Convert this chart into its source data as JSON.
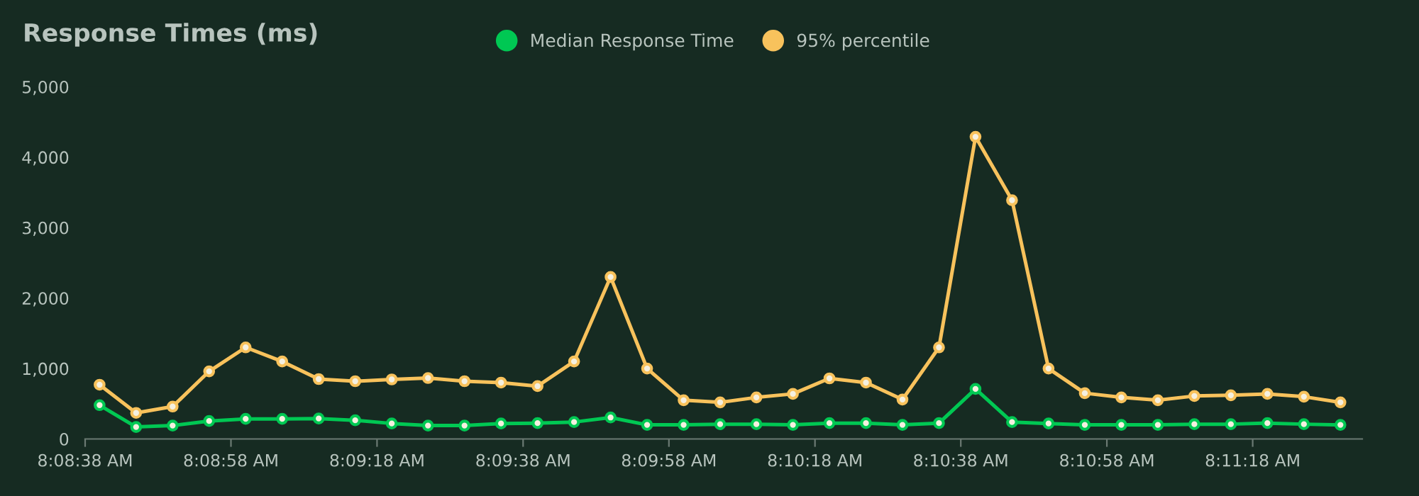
{
  "chart_data": {
    "type": "line",
    "title": "Response Times (ms)",
    "x": [
      8.14444,
      8.14583,
      8.14722,
      8.14861,
      8.15,
      8.15139,
      8.15278,
      8.15417,
      8.15556,
      8.15694,
      8.15833,
      8.15972,
      8.16111,
      8.1625,
      8.16389,
      8.16528,
      8.16667,
      8.16806,
      8.16944,
      8.17083,
      8.17222,
      8.17361,
      8.175,
      8.17639,
      8.17778,
      8.17917,
      8.18056,
      8.18194,
      8.18333,
      8.18472,
      8.18611,
      8.1875,
      8.18889,
      8.19028,
      8.19167
    ],
    "series": [
      {
        "name": "Median Response Time",
        "color": "#00c853",
        "values": [
          480,
          170,
          190,
          255,
          285,
          285,
          290,
          265,
          220,
          190,
          190,
          220,
          225,
          240,
          305,
          200,
          200,
          210,
          210,
          200,
          225,
          225,
          200,
          225,
          710,
          240,
          220,
          200,
          200,
          200,
          210,
          210,
          225,
          210,
          200
        ]
      },
      {
        "name": "95% percentile",
        "color": "#f8c25c",
        "values": [
          770,
          370,
          460,
          960,
          1300,
          1100,
          850,
          820,
          845,
          865,
          820,
          800,
          750,
          1100,
          2300,
          1000,
          550,
          520,
          590,
          640,
          860,
          800,
          560,
          1300,
          4290,
          3390,
          1000,
          650,
          590,
          550,
          610,
          620,
          640,
          600,
          520
        ]
      }
    ],
    "xlim": [
      8.14389,
      8.1925
    ],
    "xticks": [
      {
        "value": 8.14389,
        "label": "8:08:38 AM"
      },
      {
        "value": 8.14944,
        "label": "8:08:58 AM"
      },
      {
        "value": 8.155,
        "label": "8:09:18 AM"
      },
      {
        "value": 8.16056,
        "label": "8:09:38 AM"
      },
      {
        "value": 8.16611,
        "label": "8:09:58 AM"
      },
      {
        "value": 8.17167,
        "label": "8:10:18 AM"
      },
      {
        "value": 8.17722,
        "label": "8:10:38 AM"
      },
      {
        "value": 8.18278,
        "label": "8:10:58 AM"
      },
      {
        "value": 8.18833,
        "label": "8:11:18 AM"
      }
    ],
    "ylim": [
      0,
      5000
    ],
    "yticks": [
      {
        "value": 0,
        "label": "0"
      },
      {
        "value": 1000,
        "label": "1,000"
      },
      {
        "value": 2000,
        "label": "2,000"
      },
      {
        "value": 3000,
        "label": "3,000"
      },
      {
        "value": 4000,
        "label": "4,000"
      },
      {
        "value": 5000,
        "label": "5,000"
      }
    ],
    "grid": false,
    "legend": "top",
    "marker": "circle",
    "line_style": "solid"
  }
}
